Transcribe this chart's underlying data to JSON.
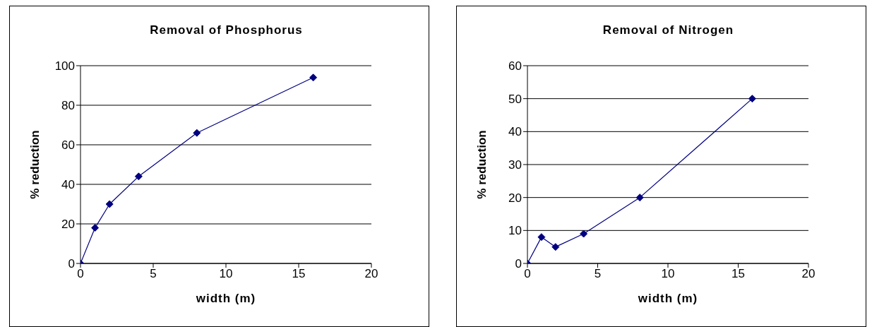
{
  "chart_data": [
    {
      "type": "line",
      "title": "Removal of Phosphorus",
      "xlabel": "width (m)",
      "ylabel": "% reduction",
      "x": [
        0,
        1,
        2,
        4,
        8,
        16
      ],
      "series": [
        {
          "color": "#000080",
          "values": [
            0,
            18,
            30,
            44,
            66,
            94
          ]
        }
      ],
      "xlim": [
        0,
        20
      ],
      "xticks": [
        0,
        5,
        10,
        15,
        20
      ],
      "ylim": [
        0,
        100
      ],
      "yticks": [
        0,
        20,
        40,
        60,
        80,
        100
      ],
      "grid": "y",
      "marker": "diamond",
      "line_style": "solid",
      "legend": false
    },
    {
      "type": "line",
      "title": "Removal of Nitrogen",
      "xlabel": "width (m)",
      "ylabel": "% reduction",
      "x": [
        0,
        1,
        2,
        4,
        8,
        16
      ],
      "series": [
        {
          "color": "#000080",
          "values": [
            0,
            8,
            5,
            9,
            20,
            50
          ]
        }
      ],
      "xlim": [
        0,
        20
      ],
      "xticks": [
        0,
        5,
        10,
        15,
        20
      ],
      "ylim": [
        0,
        60
      ],
      "yticks": [
        0,
        10,
        20,
        30,
        40,
        50,
        60
      ],
      "grid": "y",
      "marker": "diamond",
      "line_style": "solid",
      "legend": false
    }
  ]
}
